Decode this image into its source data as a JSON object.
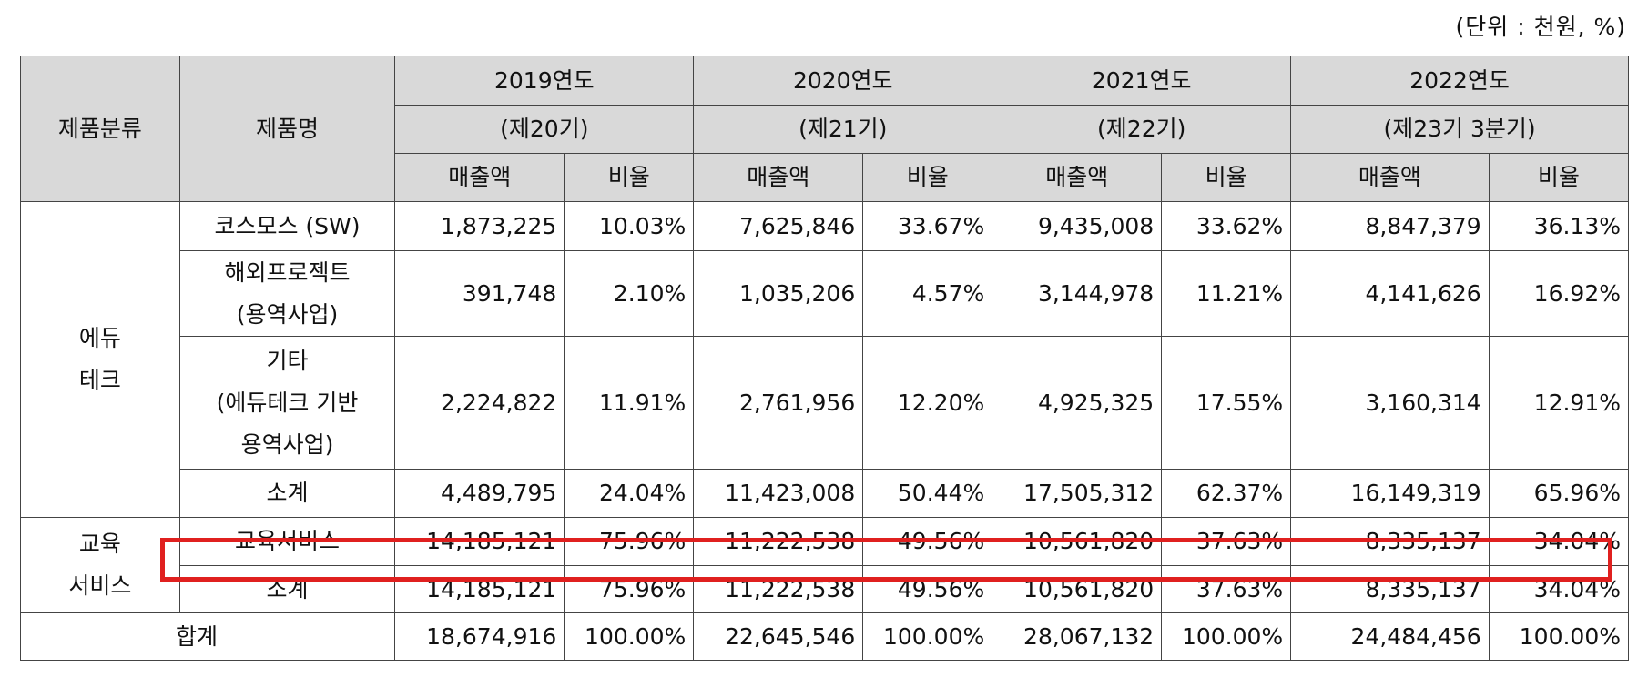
{
  "unit_label": "(단위 : 천원, %)",
  "header": {
    "category": "제품분류",
    "product": "제품명",
    "years": [
      {
        "year": "2019연도",
        "period": "(제20기)"
      },
      {
        "year": "2020연도",
        "period": "(제21기)"
      },
      {
        "year": "2021연도",
        "period": "(제22기)"
      },
      {
        "year": "2022연도",
        "period": "(제23기 3분기)"
      }
    ],
    "sales": "매출액",
    "ratio": "비율"
  },
  "groups": {
    "edutech": "에듀\n테크",
    "education": "교육\n서비스"
  },
  "rows": [
    {
      "product": "코스모스 (SW)",
      "values": [
        "1,873,225",
        "10.03%",
        "7,625,846",
        "33.67%",
        "9,435,008",
        "33.62%",
        "8,847,379",
        "36.13%"
      ]
    },
    {
      "product": "해외프로젝트\n(용역사업)",
      "values": [
        "391,748",
        "2.10%",
        "1,035,206",
        "4.57%",
        "3,144,978",
        "11.21%",
        "4,141,626",
        "16.92%"
      ]
    },
    {
      "product": "기타\n(에듀테크 기반\n용역사업)",
      "values": [
        "2,224,822",
        "11.91%",
        "2,761,956",
        "12.20%",
        "4,925,325",
        "17.55%",
        "3,160,314",
        "12.91%"
      ]
    },
    {
      "product": "소계",
      "values": [
        "4,489,795",
        "24.04%",
        "11,423,008",
        "50.44%",
        "17,505,312",
        "62.37%",
        "16,149,319",
        "65.96%"
      ]
    },
    {
      "product": "교육서비스",
      "values": [
        "14,185,121",
        "75.96%",
        "11,222,538",
        "49.56%",
        "10,561,820",
        "37.63%",
        "8,335,137",
        "34.04%"
      ]
    },
    {
      "product": "소계",
      "values": [
        "14,185,121",
        "75.96%",
        "11,222,538",
        "49.56%",
        "10,561,820",
        "37.63%",
        "8,335,137",
        "34.04%"
      ]
    }
  ],
  "total": {
    "label": "합계",
    "values": [
      "18,674,916",
      "100.00%",
      "22,645,546",
      "100.00%",
      "28,067,132",
      "100.00%",
      "24,484,456",
      "100.00%"
    ]
  },
  "highlight_color": "#e0201f"
}
